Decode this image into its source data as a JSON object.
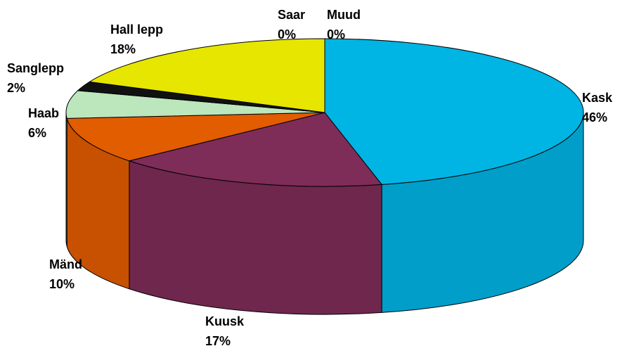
{
  "chart_data": {
    "type": "pie3d",
    "categories": [
      "Kask",
      "Kuusk",
      "Mänd",
      "Haab",
      "Sanglepp",
      "Hall lepp",
      "Saar",
      "Muud"
    ],
    "values": [
      46,
      17,
      10,
      6,
      2,
      18,
      0,
      0
    ],
    "value_labels": [
      "46%",
      "17%",
      "10%",
      "6%",
      "2%",
      "18%",
      "0%",
      "0%"
    ],
    "colors": [
      "#00b4e4",
      "#7e2c58",
      "#e25c00",
      "#bce6bc",
      "#111111",
      "#e6e600",
      "#1c3c8c",
      "#0a58a8"
    ]
  }
}
